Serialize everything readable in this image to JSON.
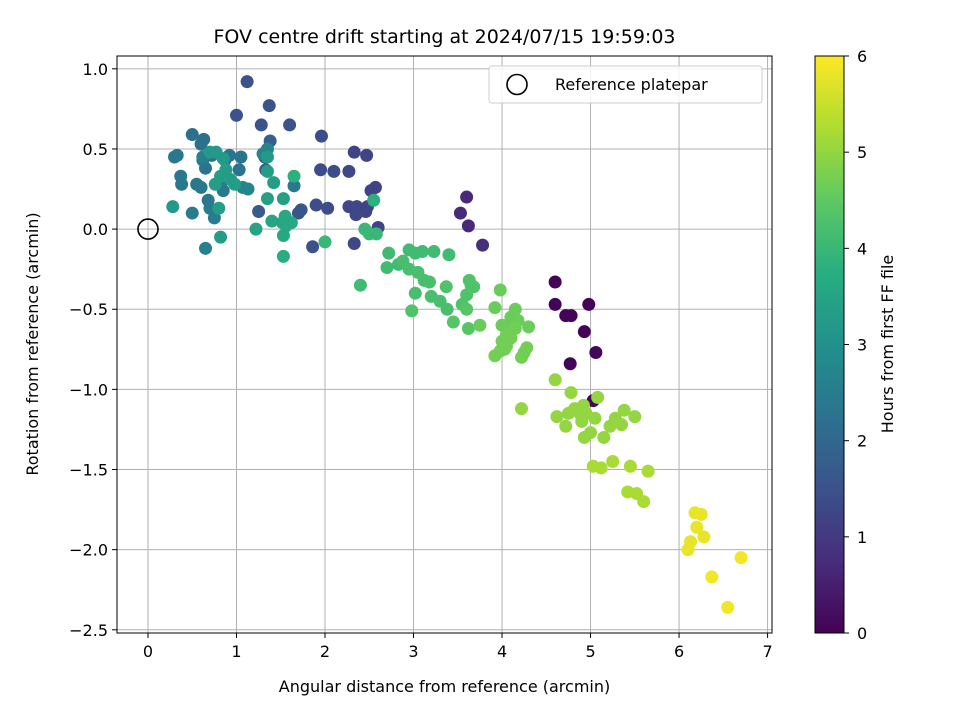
{
  "chart_data": {
    "type": "scatter",
    "title": "FOV centre drift starting at 2024/07/15 19:59:03",
    "xlabel": "Angular distance from reference (arcmin)",
    "ylabel": "Rotation from reference (arcmin)",
    "xlim": [
      -0.35,
      7.05
    ],
    "ylim": [
      -2.52,
      1.08
    ],
    "xticks": [
      0,
      1,
      2,
      3,
      4,
      5,
      6,
      7
    ],
    "xtick_labels": [
      "0",
      "1",
      "2",
      "3",
      "4",
      "5",
      "6",
      "7"
    ],
    "yticks": [
      1.0,
      0.5,
      0.0,
      -0.5,
      -1.0,
      -1.5,
      -2.0,
      -2.5
    ],
    "ytick_labels": [
      "1.0",
      "0.5",
      "0.0",
      "−0.5",
      "−1.0",
      "−1.5",
      "−2.0",
      "−2.5"
    ],
    "grid": true,
    "legend": {
      "position": "top-right",
      "entries": [
        "Reference platepar"
      ]
    },
    "reference_point": {
      "x": 0,
      "y": 0
    },
    "colorbar": {
      "label": "Hours from first FF file",
      "range": [
        0,
        6
      ],
      "ticks": [
        0,
        1,
        2,
        3,
        4,
        5,
        6
      ],
      "tick_labels": [
        "0",
        "1",
        "2",
        "3",
        "4",
        "5",
        "6"
      ],
      "colormap": "viridis"
    },
    "points": [
      {
        "x": 4.6,
        "y": -0.33,
        "h": 0.05
      },
      {
        "x": 4.6,
        "y": -0.47,
        "h": 0.05
      },
      {
        "x": 4.72,
        "y": -0.54,
        "h": 0.05
      },
      {
        "x": 4.78,
        "y": -0.54,
        "h": 0.05
      },
      {
        "x": 4.77,
        "y": -0.84,
        "h": 0.05
      },
      {
        "x": 4.93,
        "y": -0.64,
        "h": 0.05
      },
      {
        "x": 4.98,
        "y": -0.47,
        "h": 0.05
      },
      {
        "x": 5.06,
        "y": -0.77,
        "h": 0.1
      },
      {
        "x": 5.03,
        "y": -1.07,
        "h": 0.1
      },
      {
        "x": 3.6,
        "y": 0.2,
        "h": 0.7
      },
      {
        "x": 3.53,
        "y": 0.1,
        "h": 0.7
      },
      {
        "x": 3.62,
        "y": 0.02,
        "h": 0.7
      },
      {
        "x": 3.78,
        "y": -0.1,
        "h": 0.8
      },
      {
        "x": 1.12,
        "y": 0.92,
        "h": 1.5
      },
      {
        "x": 1.37,
        "y": 0.77,
        "h": 1.5
      },
      {
        "x": 1.0,
        "y": 0.71,
        "h": 1.5
      },
      {
        "x": 1.28,
        "y": 0.65,
        "h": 1.5
      },
      {
        "x": 1.6,
        "y": 0.65,
        "h": 1.5
      },
      {
        "x": 1.96,
        "y": 0.58,
        "h": 1.4
      },
      {
        "x": 2.33,
        "y": 0.48,
        "h": 1.2
      },
      {
        "x": 2.47,
        "y": 0.46,
        "h": 1.2
      },
      {
        "x": 1.95,
        "y": 0.37,
        "h": 1.4
      },
      {
        "x": 2.1,
        "y": 0.36,
        "h": 1.4
      },
      {
        "x": 2.27,
        "y": 0.36,
        "h": 1.3
      },
      {
        "x": 2.52,
        "y": 0.24,
        "h": 1.2
      },
      {
        "x": 2.57,
        "y": 0.26,
        "h": 1.2
      },
      {
        "x": 1.9,
        "y": 0.15,
        "h": 1.4
      },
      {
        "x": 2.27,
        "y": 0.14,
        "h": 1.3
      },
      {
        "x": 2.36,
        "y": 0.14,
        "h": 1.3
      },
      {
        "x": 2.46,
        "y": 0.11,
        "h": 1.2
      },
      {
        "x": 2.48,
        "y": 0.14,
        "h": 1.2
      },
      {
        "x": 2.35,
        "y": 0.09,
        "h": 1.3
      },
      {
        "x": 2.03,
        "y": 0.13,
        "h": 1.4
      },
      {
        "x": 2.33,
        "y": -0.09,
        "h": 1.3
      },
      {
        "x": 2.6,
        "y": 0.01,
        "h": 1.2
      },
      {
        "x": 1.86,
        "y": -0.11,
        "h": 1.5
      },
      {
        "x": 1.7,
        "y": 0.1,
        "h": 1.6
      },
      {
        "x": 1.73,
        "y": 0.12,
        "h": 1.6
      },
      {
        "x": 1.25,
        "y": 0.11,
        "h": 1.7
      },
      {
        "x": 1.33,
        "y": 0.37,
        "h": 1.8
      },
      {
        "x": 1.32,
        "y": 0.45,
        "h": 1.8
      },
      {
        "x": 1.38,
        "y": 0.55,
        "h": 1.8
      },
      {
        "x": 0.5,
        "y": 0.59,
        "h": 2.2
      },
      {
        "x": 0.63,
        "y": 0.56,
        "h": 2.2
      },
      {
        "x": 0.6,
        "y": 0.53,
        "h": 2.2
      },
      {
        "x": 0.33,
        "y": 0.46,
        "h": 2.4
      },
      {
        "x": 0.3,
        "y": 0.45,
        "h": 2.4
      },
      {
        "x": 0.62,
        "y": 0.43,
        "h": 2.3
      },
      {
        "x": 0.87,
        "y": 0.43,
        "h": 2.3
      },
      {
        "x": 0.92,
        "y": 0.46,
        "h": 2.3
      },
      {
        "x": 1.05,
        "y": 0.45,
        "h": 2.3
      },
      {
        "x": 0.72,
        "y": 0.46,
        "h": 2.3
      },
      {
        "x": 0.65,
        "y": 0.38,
        "h": 2.3
      },
      {
        "x": 1.03,
        "y": 0.37,
        "h": 2.3
      },
      {
        "x": 0.37,
        "y": 0.33,
        "h": 2.4
      },
      {
        "x": 0.38,
        "y": 0.28,
        "h": 2.4
      },
      {
        "x": 0.55,
        "y": 0.28,
        "h": 2.4
      },
      {
        "x": 0.6,
        "y": 0.26,
        "h": 2.4
      },
      {
        "x": 0.82,
        "y": 0.28,
        "h": 2.4
      },
      {
        "x": 0.85,
        "y": 0.24,
        "h": 2.4
      },
      {
        "x": 0.68,
        "y": 0.18,
        "h": 2.4
      },
      {
        "x": 0.5,
        "y": 0.1,
        "h": 2.5
      },
      {
        "x": 0.75,
        "y": 0.07,
        "h": 2.5
      },
      {
        "x": 0.7,
        "y": 0.13,
        "h": 2.5
      },
      {
        "x": 0.65,
        "y": -0.12,
        "h": 2.6
      },
      {
        "x": 1.65,
        "y": 0.27,
        "h": 2.4
      },
      {
        "x": 1.35,
        "y": 0.5,
        "h": 2.7
      },
      {
        "x": 1.3,
        "y": 0.47,
        "h": 2.7
      },
      {
        "x": 0.62,
        "y": 0.45,
        "h": 2.6
      },
      {
        "x": 1.07,
        "y": 0.26,
        "h": 2.7
      },
      {
        "x": 1.13,
        "y": 0.25,
        "h": 2.7
      },
      {
        "x": 0.28,
        "y": 0.14,
        "h": 3.2
      },
      {
        "x": 0.8,
        "y": 0.13,
        "h": 3.3
      },
      {
        "x": 0.82,
        "y": -0.05,
        "h": 3.3
      },
      {
        "x": 0.7,
        "y": 0.48,
        "h": 3.2
      },
      {
        "x": 0.77,
        "y": 0.48,
        "h": 3.2
      },
      {
        "x": 0.85,
        "y": 0.44,
        "h": 3.2
      },
      {
        "x": 0.88,
        "y": 0.37,
        "h": 3.3
      },
      {
        "x": 0.82,
        "y": 0.33,
        "h": 3.3
      },
      {
        "x": 0.93,
        "y": 0.31,
        "h": 3.3
      },
      {
        "x": 0.98,
        "y": 0.28,
        "h": 3.3
      },
      {
        "x": 0.76,
        "y": 0.28,
        "h": 3.3
      },
      {
        "x": 1.35,
        "y": 0.45,
        "h": 3.2
      },
      {
        "x": 1.35,
        "y": 0.36,
        "h": 3.3
      },
      {
        "x": 1.42,
        "y": 0.29,
        "h": 3.3
      },
      {
        "x": 1.35,
        "y": 0.19,
        "h": 3.4
      },
      {
        "x": 1.53,
        "y": 0.19,
        "h": 3.4
      },
      {
        "x": 1.4,
        "y": 0.05,
        "h": 3.5
      },
      {
        "x": 1.52,
        "y": 0.04,
        "h": 3.5
      },
      {
        "x": 1.22,
        "y": 0.0,
        "h": 3.5
      },
      {
        "x": 1.53,
        "y": -0.04,
        "h": 3.6
      },
      {
        "x": 1.56,
        "y": 0.02,
        "h": 3.6
      },
      {
        "x": 1.62,
        "y": 0.04,
        "h": 3.6
      },
      {
        "x": 1.55,
        "y": 0.08,
        "h": 3.6
      },
      {
        "x": 1.53,
        "y": -0.17,
        "h": 3.7
      },
      {
        "x": 1.65,
        "y": 0.33,
        "h": 3.8
      },
      {
        "x": 2.55,
        "y": 0.18,
        "h": 3.8
      },
      {
        "x": 2.45,
        "y": 0.0,
        "h": 4.0
      },
      {
        "x": 2.5,
        "y": -0.03,
        "h": 4.0
      },
      {
        "x": 2.58,
        "y": -0.03,
        "h": 4.0
      },
      {
        "x": 2.0,
        "y": -0.08,
        "h": 4.0
      },
      {
        "x": 2.4,
        "y": -0.35,
        "h": 4.1
      },
      {
        "x": 2.72,
        "y": -0.15,
        "h": 4.1
      },
      {
        "x": 2.7,
        "y": -0.24,
        "h": 4.1
      },
      {
        "x": 2.83,
        "y": -0.22,
        "h": 4.1
      },
      {
        "x": 2.95,
        "y": -0.13,
        "h": 4.1
      },
      {
        "x": 3.02,
        "y": -0.15,
        "h": 4.1
      },
      {
        "x": 3.1,
        "y": -0.14,
        "h": 4.1
      },
      {
        "x": 3.23,
        "y": -0.14,
        "h": 4.1
      },
      {
        "x": 3.4,
        "y": -0.16,
        "h": 4.1
      },
      {
        "x": 2.88,
        "y": -0.2,
        "h": 4.2
      },
      {
        "x": 2.95,
        "y": -0.25,
        "h": 4.2
      },
      {
        "x": 3.05,
        "y": -0.27,
        "h": 4.2
      },
      {
        "x": 3.12,
        "y": -0.32,
        "h": 4.2
      },
      {
        "x": 3.18,
        "y": -0.33,
        "h": 4.2
      },
      {
        "x": 3.02,
        "y": -0.4,
        "h": 4.2
      },
      {
        "x": 3.2,
        "y": -0.42,
        "h": 4.2
      },
      {
        "x": 3.3,
        "y": -0.45,
        "h": 4.2
      },
      {
        "x": 3.38,
        "y": -0.5,
        "h": 4.2
      },
      {
        "x": 3.37,
        "y": -0.36,
        "h": 4.3
      },
      {
        "x": 3.55,
        "y": -0.47,
        "h": 4.3
      },
      {
        "x": 3.6,
        "y": -0.41,
        "h": 4.3
      },
      {
        "x": 3.63,
        "y": -0.32,
        "h": 4.3
      },
      {
        "x": 3.65,
        "y": -0.35,
        "h": 4.3
      },
      {
        "x": 3.68,
        "y": -0.36,
        "h": 4.3
      },
      {
        "x": 2.98,
        "y": -0.51,
        "h": 4.3
      },
      {
        "x": 3.6,
        "y": -0.5,
        "h": 4.4
      },
      {
        "x": 3.45,
        "y": -0.58,
        "h": 4.4
      },
      {
        "x": 3.62,
        "y": -0.62,
        "h": 4.4
      },
      {
        "x": 3.75,
        "y": -0.6,
        "h": 4.6
      },
      {
        "x": 3.92,
        "y": -0.49,
        "h": 4.6
      },
      {
        "x": 3.98,
        "y": -0.38,
        "h": 4.6
      },
      {
        "x": 4.0,
        "y": -0.6,
        "h": 4.6
      },
      {
        "x": 4.05,
        "y": -0.62,
        "h": 4.6
      },
      {
        "x": 4.1,
        "y": -0.55,
        "h": 4.6
      },
      {
        "x": 4.15,
        "y": -0.5,
        "h": 4.6
      },
      {
        "x": 4.18,
        "y": -0.57,
        "h": 4.6
      },
      {
        "x": 4.3,
        "y": -0.61,
        "h": 4.6
      },
      {
        "x": 4.05,
        "y": -0.66,
        "h": 4.7
      },
      {
        "x": 4.1,
        "y": -0.68,
        "h": 4.7
      },
      {
        "x": 4.15,
        "y": -0.62,
        "h": 4.7
      },
      {
        "x": 4.0,
        "y": -0.7,
        "h": 4.7
      },
      {
        "x": 4.05,
        "y": -0.73,
        "h": 4.7
      },
      {
        "x": 4.03,
        "y": -0.75,
        "h": 4.7
      },
      {
        "x": 3.92,
        "y": -0.79,
        "h": 4.7
      },
      {
        "x": 3.98,
        "y": -0.76,
        "h": 4.7
      },
      {
        "x": 4.28,
        "y": -0.74,
        "h": 4.7
      },
      {
        "x": 4.25,
        "y": -0.77,
        "h": 4.7
      },
      {
        "x": 4.22,
        "y": -0.8,
        "h": 4.7
      },
      {
        "x": 4.22,
        "y": -1.12,
        "h": 5.0
      },
      {
        "x": 4.6,
        "y": -0.94,
        "h": 5.0
      },
      {
        "x": 4.78,
        "y": -1.02,
        "h": 5.0
      },
      {
        "x": 4.62,
        "y": -1.17,
        "h": 5.0
      },
      {
        "x": 4.72,
        "y": -1.23,
        "h": 5.0
      },
      {
        "x": 4.75,
        "y": -1.15,
        "h": 5.0
      },
      {
        "x": 4.82,
        "y": -1.12,
        "h": 5.0
      },
      {
        "x": 4.88,
        "y": -1.15,
        "h": 5.0
      },
      {
        "x": 4.92,
        "y": -1.1,
        "h": 5.0
      },
      {
        "x": 4.9,
        "y": -1.2,
        "h": 5.0
      },
      {
        "x": 4.95,
        "y": -1.15,
        "h": 5.0
      },
      {
        "x": 5.05,
        "y": -1.18,
        "h": 5.0
      },
      {
        "x": 5.08,
        "y": -1.05,
        "h": 5.0
      },
      {
        "x": 4.93,
        "y": -1.3,
        "h": 5.0
      },
      {
        "x": 5.0,
        "y": -1.27,
        "h": 5.0
      },
      {
        "x": 5.15,
        "y": -1.3,
        "h": 5.0
      },
      {
        "x": 5.22,
        "y": -1.23,
        "h": 5.0
      },
      {
        "x": 5.28,
        "y": -1.18,
        "h": 5.0
      },
      {
        "x": 5.38,
        "y": -1.13,
        "h": 5.0
      },
      {
        "x": 5.35,
        "y": -1.22,
        "h": 5.0
      },
      {
        "x": 5.5,
        "y": -1.17,
        "h": 5.0
      },
      {
        "x": 5.03,
        "y": -1.48,
        "h": 5.2
      },
      {
        "x": 5.12,
        "y": -1.49,
        "h": 5.2
      },
      {
        "x": 5.25,
        "y": -1.45,
        "h": 5.2
      },
      {
        "x": 5.45,
        "y": -1.48,
        "h": 5.2
      },
      {
        "x": 5.65,
        "y": -1.51,
        "h": 5.2
      },
      {
        "x": 5.42,
        "y": -1.64,
        "h": 5.2
      },
      {
        "x": 5.52,
        "y": -1.65,
        "h": 5.2
      },
      {
        "x": 5.6,
        "y": -1.7,
        "h": 5.2
      },
      {
        "x": 6.18,
        "y": -1.77,
        "h": 5.8
      },
      {
        "x": 6.25,
        "y": -1.78,
        "h": 5.8
      },
      {
        "x": 6.2,
        "y": -1.86,
        "h": 5.8
      },
      {
        "x": 6.28,
        "y": -1.92,
        "h": 5.8
      },
      {
        "x": 6.13,
        "y": -1.95,
        "h": 5.8
      },
      {
        "x": 6.1,
        "y": -2.0,
        "h": 5.8
      },
      {
        "x": 6.7,
        "y": -2.05,
        "h": 5.9
      },
      {
        "x": 6.37,
        "y": -2.17,
        "h": 5.9
      },
      {
        "x": 6.55,
        "y": -2.36,
        "h": 5.9
      }
    ]
  }
}
